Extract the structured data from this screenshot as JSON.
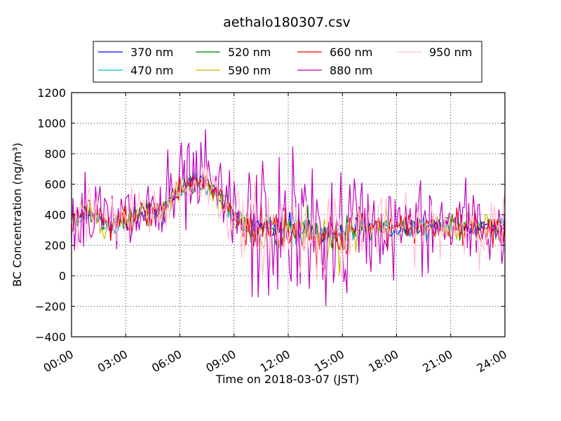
{
  "chart_data": {
    "type": "line",
    "title": "aethalo180307.csv",
    "xlabel": "Time on 2018-03-07 (JST)",
    "ylabel": "BC Concentration (ng/m³)",
    "xlim_hours": [
      0,
      24
    ],
    "ylim": [
      -400,
      1200
    ],
    "x_ticks": [
      "00:00",
      "03:00",
      "06:00",
      "09:00",
      "12:00",
      "15:00",
      "18:00",
      "21:00",
      "24:00"
    ],
    "y_ticks": [
      -400,
      -200,
      0,
      200,
      400,
      600,
      800,
      1000,
      1200
    ],
    "grid": true,
    "legend_position": "top",
    "series": [
      {
        "name": "370 nm",
        "color": "#0000ff",
        "noise": 25
      },
      {
        "name": "470 nm",
        "color": "#00bfbf",
        "noise": 30
      },
      {
        "name": "520 nm",
        "color": "#008000",
        "noise": 35
      },
      {
        "name": "590 nm",
        "color": "#bfbf00",
        "noise": 40
      },
      {
        "name": "660 nm",
        "color": "#ff0000",
        "noise": 50
      },
      {
        "name": "880 nm",
        "color": "#bf00bf",
        "noise": 150
      },
      {
        "name": "950 nm",
        "color": "#ffc0cb",
        "noise": 90
      }
    ],
    "trend": {
      "x": [
        0,
        1,
        2,
        3,
        4,
        5,
        6,
        6.5,
        7,
        7.5,
        8,
        9,
        10,
        11,
        12,
        13,
        14,
        15,
        16,
        17,
        18,
        19,
        20,
        21,
        22,
        23,
        24
      ],
      "y": [
        360,
        420,
        330,
        360,
        410,
        430,
        560,
        600,
        620,
        600,
        540,
        390,
        300,
        310,
        320,
        280,
        270,
        260,
        320,
        320,
        300,
        320,
        320,
        330,
        320,
        320,
        310
      ]
    }
  }
}
